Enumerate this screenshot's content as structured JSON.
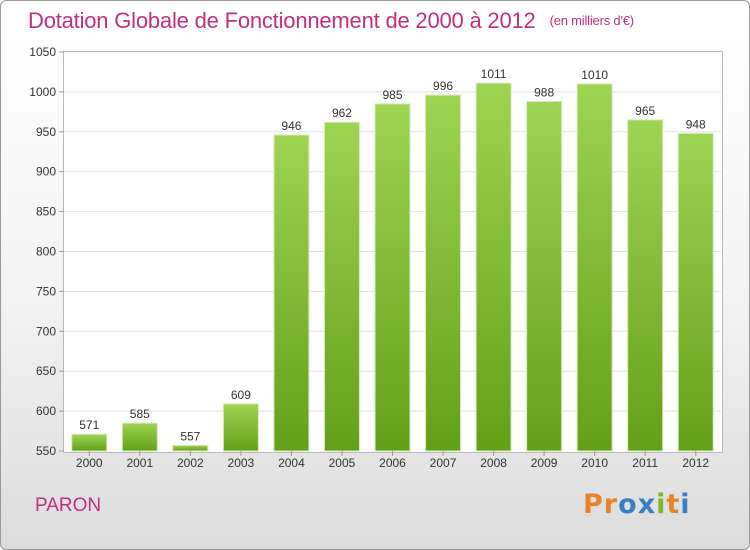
{
  "header": {
    "title": "Dotation Globale de Fonctionnement de 2000 à 2012",
    "unit": "(en milliers d'€)"
  },
  "footer": {
    "place": "PARON",
    "brand": "Proxiti"
  },
  "colors": {
    "title": "#c0317a",
    "bar_light": "#9ed453",
    "bar_dark": "#63a019",
    "logo": [
      "#e8832a",
      "#e8832a",
      "#3a7fc4",
      "#3a7fc4",
      "#7cb82f",
      "#e8832a",
      "#3a7fc4"
    ]
  },
  "chart_data": {
    "type": "bar",
    "title": "Dotation Globale de Fonctionnement de 2000 à 2012",
    "subtitle": "(en milliers d'€)",
    "xlabel": "",
    "ylabel": "",
    "categories": [
      "2000",
      "2001",
      "2002",
      "2003",
      "2004",
      "2005",
      "2006",
      "2007",
      "2008",
      "2009",
      "2010",
      "2011",
      "2012"
    ],
    "values": [
      571,
      585,
      557,
      609,
      946,
      962,
      985,
      996,
      1011,
      988,
      1010,
      965,
      948
    ],
    "ylim": [
      550,
      1050
    ],
    "yticks": [
      550,
      600,
      650,
      700,
      750,
      800,
      850,
      900,
      950,
      1000,
      1050
    ],
    "grid": true,
    "legend": "none"
  }
}
